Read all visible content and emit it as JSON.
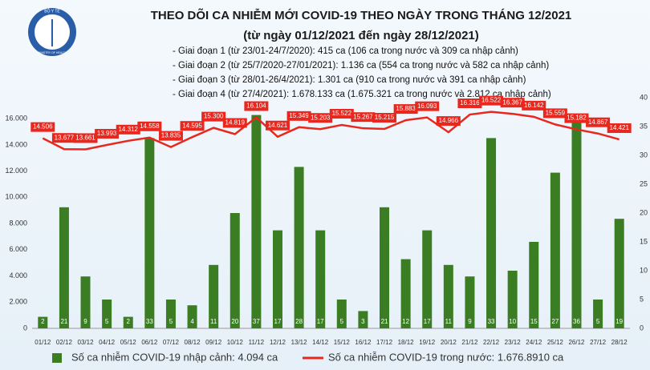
{
  "chart_data": {
    "type": "bar-line",
    "logo_top": "BỘ Y TẾ",
    "logo_bottom": "MINISTRY OF HEALTH",
    "title": "THEO DÕI CA NHIỄM MỚI COVID-19 THEO NGÀY TRONG THÁNG 12/2021",
    "subtitle": "(từ ngày 01/12/2021 đến ngày 28/12/2021)",
    "notes": [
      "- Giai đoạn 1 (từ 23/01-24/7/2020): 415 ca (106 ca trong nước và 309 ca nhập cảnh)",
      "- Giai đoạn 2 (từ 25/7/2020-27/01/2021): 1.136 ca (554 ca trong nước và 582 ca nhập cảnh)",
      "- Giai đoạn 3 (từ 28/01-26/4/2021): 1.301 ca (910 ca trong nước và 391 ca nhập cảnh)",
      "- Giai đoạn 4 (từ 27/4/2021): 1.678.133 ca (1.675.321 ca trong nước và 2.812 ca nhập cảnh)"
    ],
    "categories": [
      "01/12",
      "02/12",
      "03/12",
      "04/12",
      "05/12",
      "06/12",
      "07/12",
      "08/12",
      "09/12",
      "10/12",
      "11/12",
      "12/12",
      "13/12",
      "14/12",
      "15/12",
      "16/12",
      "17/12",
      "18/12",
      "19/12",
      "20/12",
      "21/12",
      "22/12",
      "23/12",
      "24/12",
      "25/12",
      "26/12",
      "27/12",
      "28/12"
    ],
    "series": [
      {
        "name": "Số ca nhiễm COVID-19 nhập cảnh: 4.094 ca",
        "type": "bar",
        "axis": "y2",
        "color": "#3b7d23",
        "values": [
          2,
          21,
          9,
          5,
          2,
          33,
          5,
          4,
          11,
          20,
          37,
          17,
          28,
          17,
          5,
          3,
          21,
          12,
          17,
          11,
          9,
          33,
          10,
          15,
          27,
          36,
          5,
          19
        ]
      },
      {
        "name": "Số ca nhiễm COVID-19 trong nước: 1.676.8910 ca",
        "type": "line",
        "axis": "y",
        "color": "#e8281e",
        "values": [
          14506,
          13677,
          13661,
          13993,
          14312,
          14558,
          13835,
          14595,
          15300,
          14819,
          16104,
          14621,
          15349,
          15203,
          15522,
          15267,
          15215,
          15883,
          16093,
          14966,
          16316,
          16522,
          16367,
          16142,
          15559,
          15182,
          14867,
          14421
        ],
        "value_labels": [
          "14.506",
          "13.677",
          "13.661",
          "13.993",
          "14.312",
          "14.558",
          "13.835",
          "14.595",
          "15.300",
          "14.819",
          "16.104",
          "14.621",
          "15.349",
          "15.203",
          "15.522",
          "15.267",
          "15.215",
          "15.883",
          "16.093",
          "14.966",
          "16.316",
          "16.522",
          "16.367",
          "16.142",
          "15.559",
          "15.182",
          "14.867",
          "14.421"
        ]
      }
    ],
    "ylim": [
      0,
      17600
    ],
    "yticks": [
      0,
      {
        "value": 2000,
        "label": "2.000"
      },
      {
        "value": 4000,
        "label": "4.000"
      },
      {
        "value": 6000,
        "label": "6.000"
      },
      {
        "value": 8000,
        "label": "8.000"
      },
      {
        "value": 10000,
        "label": "10.000"
      },
      {
        "value": 12000,
        "label": "12.000"
      },
      {
        "value": 14000,
        "label": "14.000"
      },
      {
        "value": 16000,
        "label": "16.000"
      }
    ],
    "y2lim": [
      0,
      40
    ],
    "y2ticks": [
      0,
      5,
      10,
      15,
      20,
      25,
      30,
      35,
      40
    ],
    "legend": "bottom"
  }
}
